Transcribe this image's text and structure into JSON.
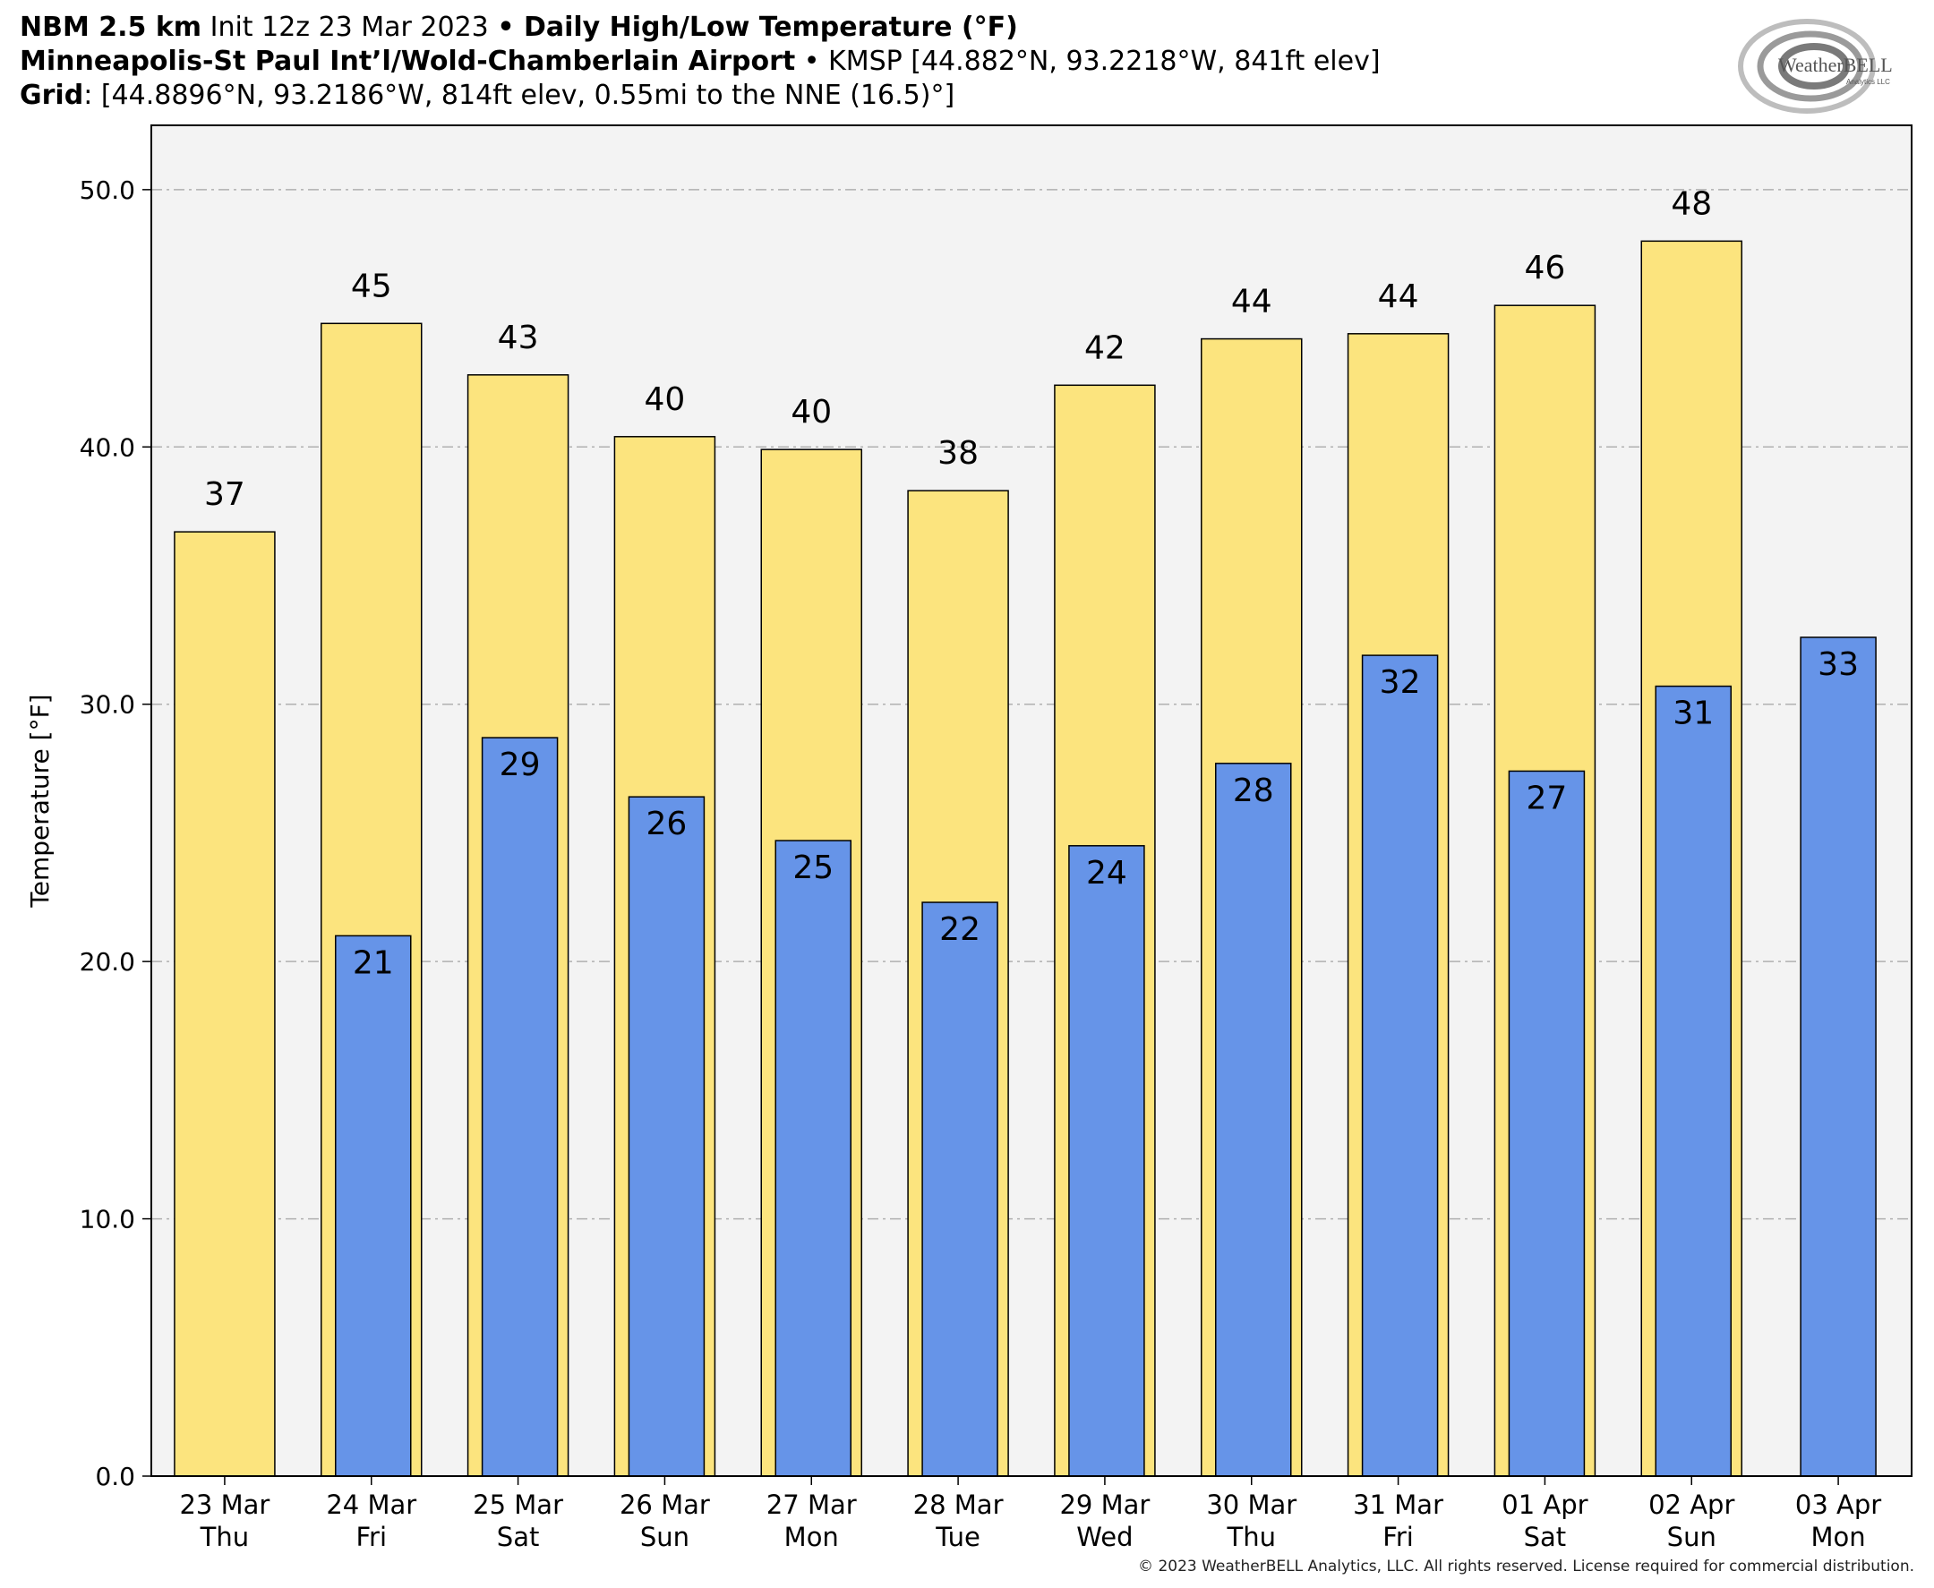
{
  "header": {
    "line1_bold": "NBM 2.5 km",
    "line1_mid": " Init 12z 23 Mar 2023 ",
    "line1_bullet": "•",
    "line1_title": " Daily High/Low Temperature (°F)",
    "line2_bold": "Minneapolis-St Paul Int’l/Wold-Chamberlain Airport",
    "line2_rest": " • KMSP [44.882°N, 93.2218°W, 841ft elev]",
    "line3_bold": "Grid",
    "line3_rest": ": [44.8896°N, 93.2186°W, 814ft elev, 0.55mi to the NNE (16.5)°]"
  },
  "logo": {
    "text": "WeatherBELL",
    "subtext": "Analytics LLC",
    "icon": "swirl-logo-icon"
  },
  "footer": "© 2023 WeatherBELL Analytics, LLC. All rights reserved. License required for commercial distribution.",
  "colors": {
    "high": "#fce47e",
    "low": "#6694e8",
    "plot_bg": "#f3f3f3",
    "grid": "#b0b0b0"
  },
  "chart_data": {
    "type": "bar",
    "title": "Daily High/Low Temperature (°F)",
    "ylabel": "Temperature [°F]",
    "ylim": [
      0,
      52.5
    ],
    "yticks": [
      0,
      10,
      20,
      30,
      40,
      50
    ],
    "ytick_labels": [
      "0.0",
      "10.0",
      "20.0",
      "30.0",
      "40.0",
      "50.0"
    ],
    "grid": true,
    "categories": [
      [
        "23 Mar",
        "Thu"
      ],
      [
        "24 Mar",
        "Fri"
      ],
      [
        "25 Mar",
        "Sat"
      ],
      [
        "26 Mar",
        "Sun"
      ],
      [
        "27 Mar",
        "Mon"
      ],
      [
        "28 Mar",
        "Tue"
      ],
      [
        "29 Mar",
        "Wed"
      ],
      [
        "30 Mar",
        "Thu"
      ],
      [
        "31 Mar",
        "Fri"
      ],
      [
        "01 Apr",
        "Sat"
      ],
      [
        "02 Apr",
        "Sun"
      ],
      [
        "03 Apr",
        "Mon"
      ]
    ],
    "series": [
      {
        "values": [
          36.7,
          44.8,
          42.8,
          40.4,
          39.9,
          38.3,
          42.4,
          44.2,
          44.4,
          45.5,
          48.0,
          null
        ],
        "labels": [
          "37",
          "45",
          "43",
          "40",
          "40",
          "38",
          "42",
          "44",
          "44",
          "46",
          "48",
          ""
        ]
      },
      {
        "values": [
          null,
          21.0,
          28.7,
          26.4,
          24.7,
          22.3,
          24.5,
          27.7,
          31.9,
          27.4,
          30.7,
          32.6
        ],
        "labels": [
          "",
          "21",
          "29",
          "26",
          "25",
          "22",
          "24",
          "28",
          "32",
          "27",
          "31",
          "33"
        ]
      }
    ]
  }
}
